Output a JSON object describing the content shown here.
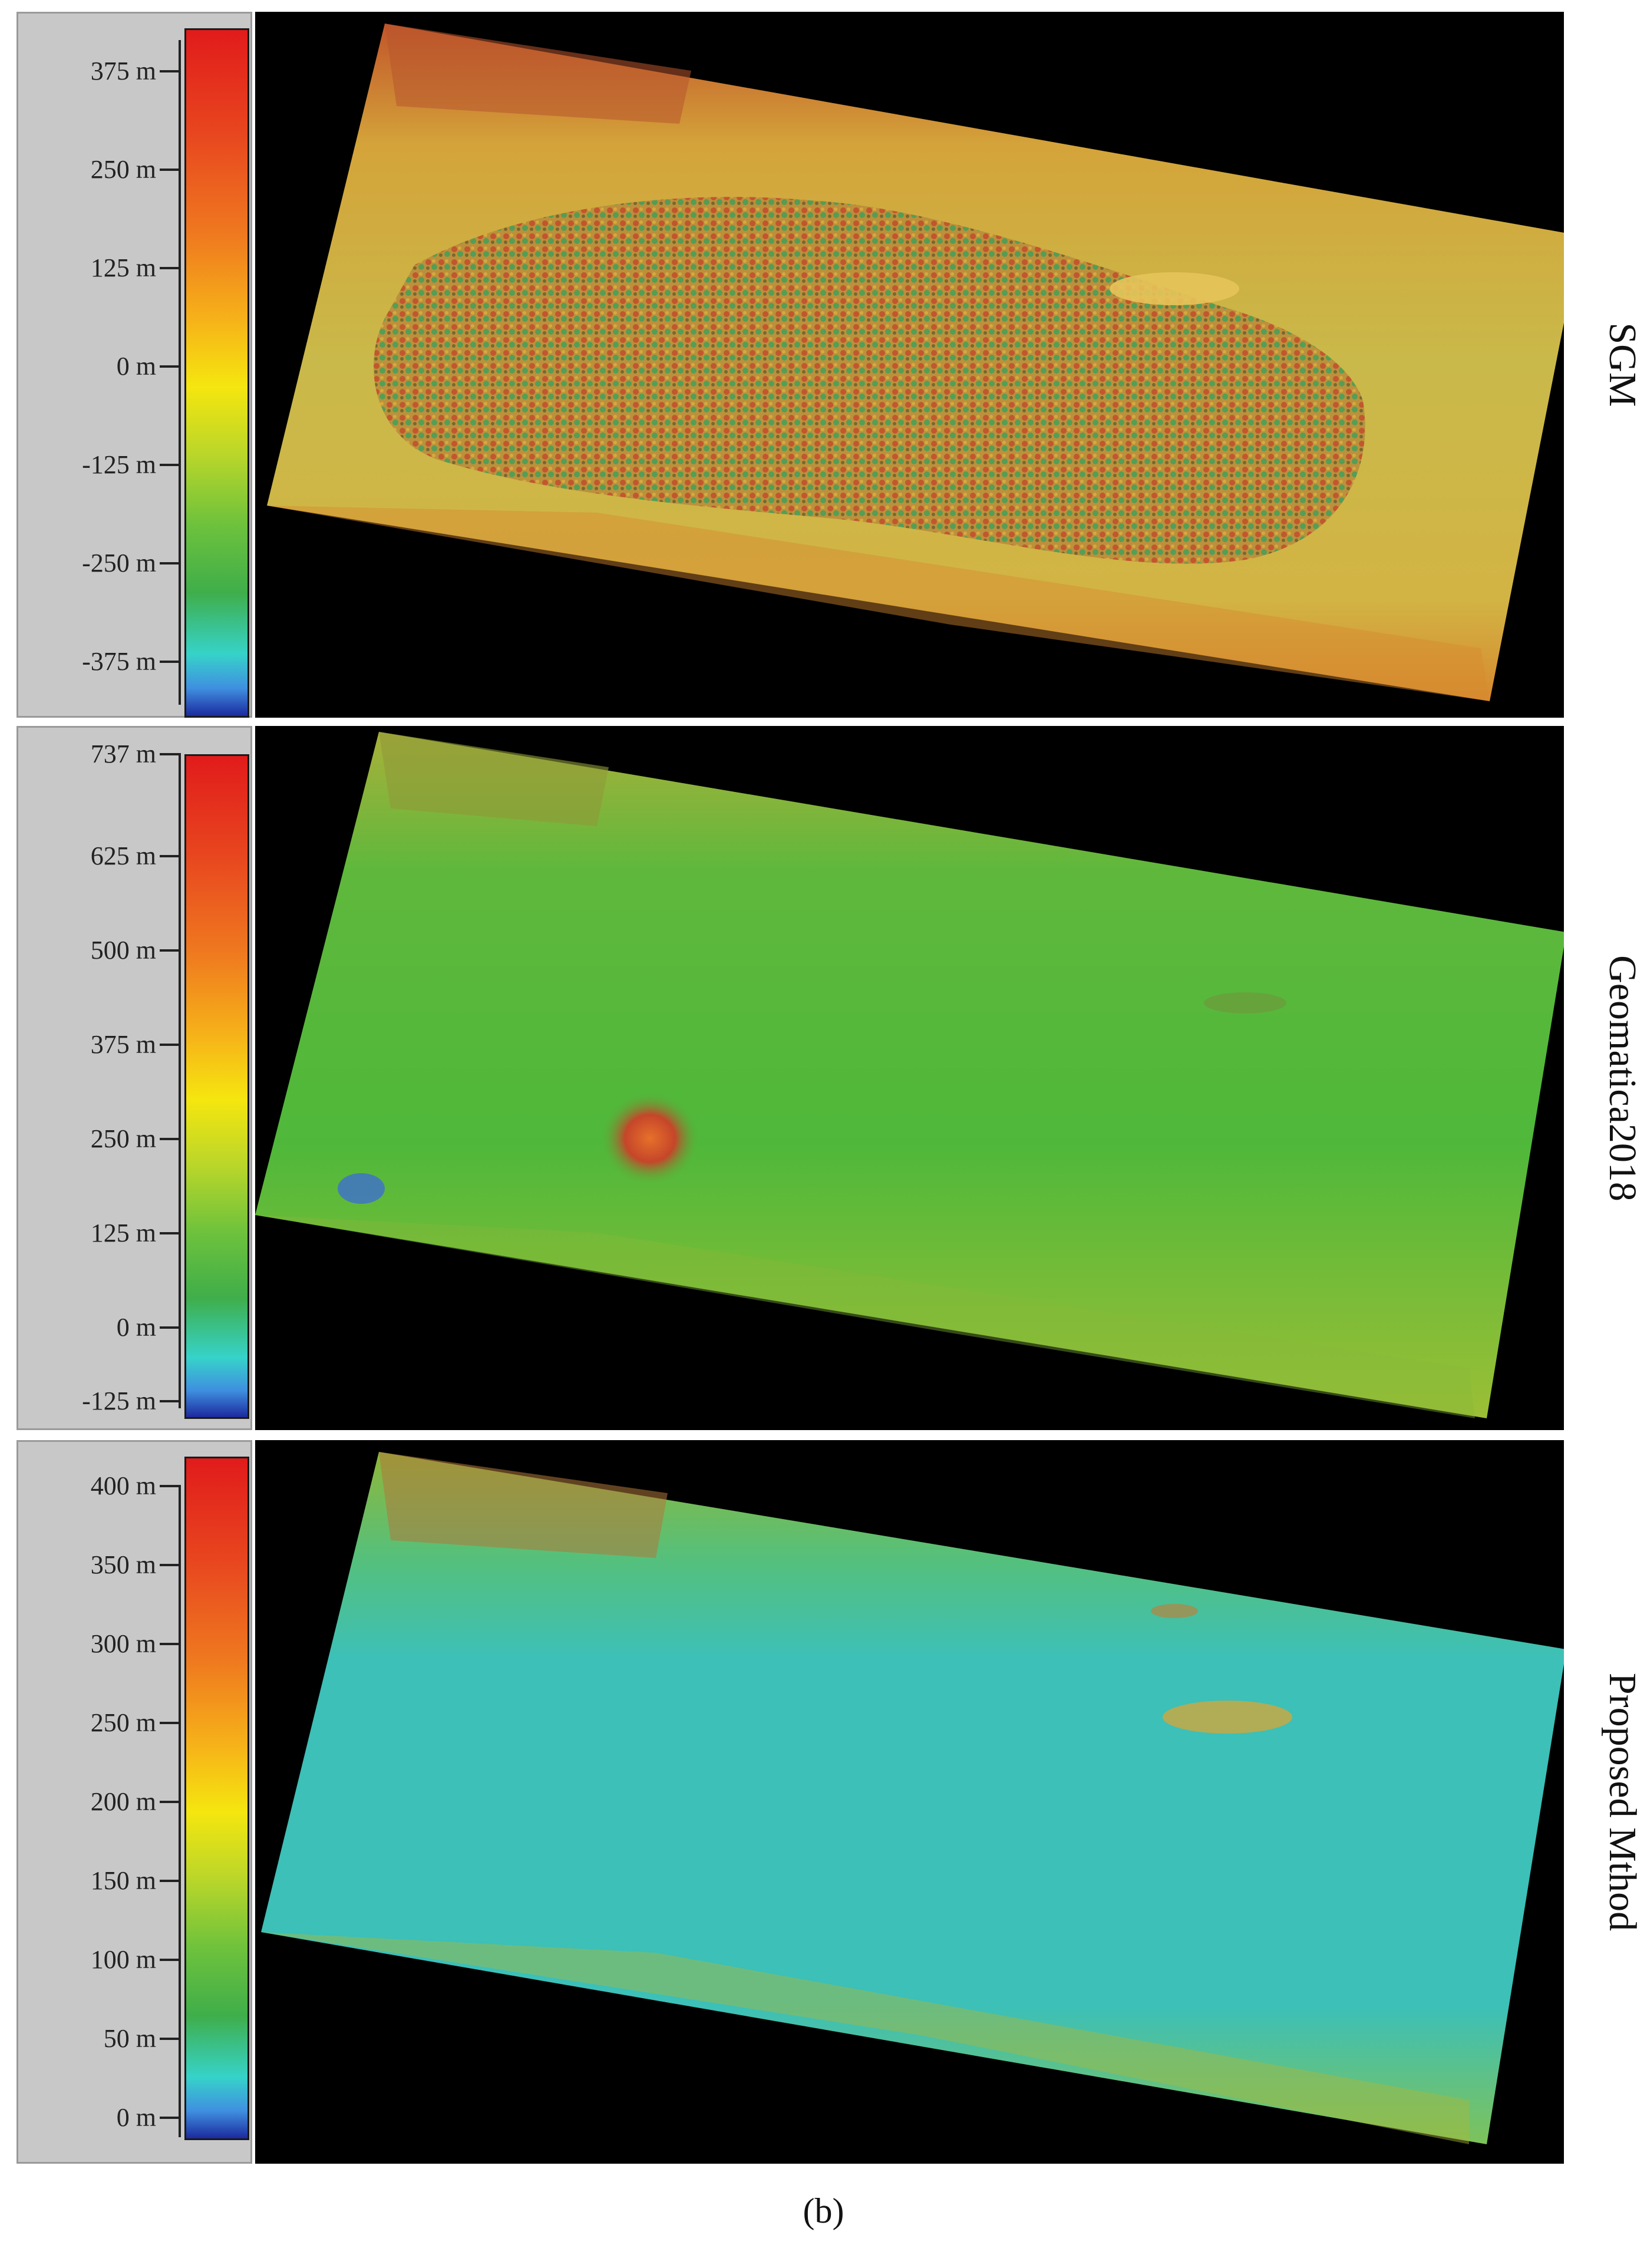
{
  "panels": [
    {
      "label": "SGM",
      "legend_ticks": [
        "375 m",
        "250 m",
        "125 m",
        "0 m",
        "-125 m",
        "-250 m",
        "-375 m"
      ],
      "dominant_color": "#c9b94a"
    },
    {
      "label": "Geomatica2018",
      "legend_ticks": [
        "737 m",
        "625 m",
        "500 m",
        "375 m",
        "250 m",
        "125 m",
        "0 m",
        "-125 m"
      ],
      "dominant_color": "#4fb83a"
    },
    {
      "label": "Proposed Mthod",
      "legend_ticks": [
        "400 m",
        "350 m",
        "300 m",
        "250 m",
        "200 m",
        "150 m",
        "100 m",
        "50 m",
        "0 m"
      ],
      "dominant_color": "#3cc0b8"
    }
  ],
  "caption": "(b)"
}
